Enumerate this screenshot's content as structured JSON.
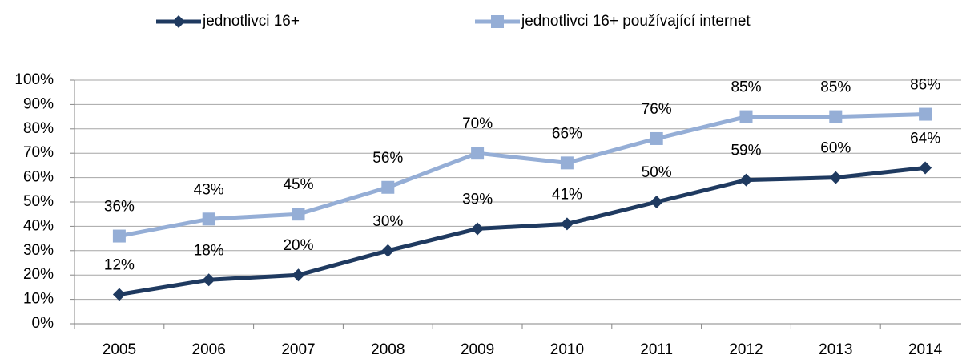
{
  "chart_data": {
    "type": "line",
    "categories": [
      "2005",
      "2006",
      "2007",
      "2008",
      "2009",
      "2010",
      "2011",
      "2012",
      "2013",
      "2014"
    ],
    "series": [
      {
        "name": "jednotlivci 16+",
        "color": "#1f3a60",
        "marker": "diamond",
        "values": [
          12,
          18,
          20,
          30,
          39,
          41,
          50,
          59,
          60,
          64
        ],
        "value_labels": [
          "12%",
          "18%",
          "20%",
          "30%",
          "39%",
          "41%",
          "50%",
          "59%",
          "60%",
          "64%"
        ]
      },
      {
        "name": "jednotlivci 16+ používající internet",
        "color": "#95aed6",
        "marker": "square",
        "values": [
          36,
          43,
          45,
          56,
          70,
          66,
          76,
          85,
          85,
          86
        ],
        "value_labels": [
          "36%",
          "43%",
          "45%",
          "56%",
          "70%",
          "66%",
          "76%",
          "85%",
          "85%",
          "86%"
        ]
      }
    ],
    "ylim": [
      0,
      100
    ],
    "yticks": [
      {
        "value": 0,
        "label": "0%"
      },
      {
        "value": 10,
        "label": "10%"
      },
      {
        "value": 20,
        "label": "20%"
      },
      {
        "value": 30,
        "label": "30%"
      },
      {
        "value": 40,
        "label": "40%"
      },
      {
        "value": 50,
        "label": "50%"
      },
      {
        "value": 60,
        "label": "60%"
      },
      {
        "value": 70,
        "label": "70%"
      },
      {
        "value": 80,
        "label": "80%"
      },
      {
        "value": 90,
        "label": "90%"
      },
      {
        "value": 100,
        "label": "100%"
      }
    ],
    "grid": true,
    "legend": "top"
  }
}
